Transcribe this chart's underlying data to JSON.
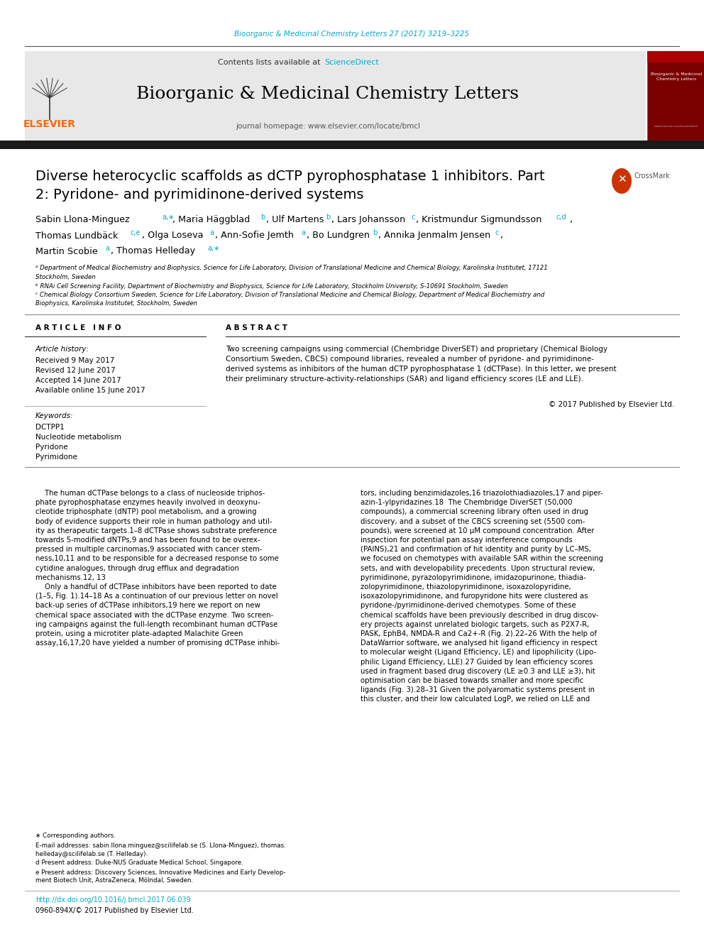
{
  "page_bg": "#ffffff",
  "top_journal_ref": "Bioorganic & Medicinal Chemistry Letters 27 (2017) 3219–3225",
  "top_journal_ref_color": "#00aacc",
  "header_bg": "#e8e8e8",
  "journal_title": "Bioorganic & Medicinal Chemistry Letters",
  "journal_homepage": "journal homepage: www.elsevier.com/locate/bmcl",
  "elsevier_orange": "#FF6600",
  "thick_bar_color": "#1a1a1a",
  "article_info_title": "A R T I C L E   I N F O",
  "abstract_title": "A B S T R A C T",
  "article_history_label": "Article history:",
  "received": "Received 9 May 2017",
  "revised": "Revised 12 June 2017",
  "accepted": "Accepted 14 June 2017",
  "available": "Available online 15 June 2017",
  "keywords_label": "Keywords:",
  "keywords": [
    "DCTPP1",
    "Nucleotide metabolism",
    "Pyridone",
    "Pyrimidone"
  ],
  "abstract_lines": [
    "Two screening campaigns using commercial (Chembridge DiverSET) and proprietary (Chemical Biology",
    "Consortium Sweden, CBCS) compound libraries, revealed a number of pyridone- and pyrimidinone-",
    "derived systems as inhibitors of the human dCTP pyrophosphatase 1 (dCTPase). In this letter, we present",
    "their preliminary structure-activity-relationships (SAR) and ligand efficiency scores (LE and LLE)."
  ],
  "copyright": "© 2017 Published by Elsevier Ltd.",
  "col1_lines": [
    "    The human dCTPase belongs to a class of nucleoside triphos-",
    "phate pyrophosphatase enzymes heavily involved in deoxynu-",
    "cleotide triphosphate (dNTP) pool metabolism, and a growing",
    "body of evidence supports their role in human pathology and util-",
    "ity as therapeutic targets.1–8 dCTPase shows substrate preference",
    "towards 5-modified dNTPs,9 and has been found to be overex-",
    "pressed in multiple carcinomas,9 associated with cancer stem-",
    "ness,10,11 and to be responsible for a decreased response to some",
    "cytidine analogues, through drug efflux and degradation",
    "mechanisms.12, 13",
    "    Only a handful of dCTPase inhibitors have been reported to date",
    "(1–5, Fig. 1).14–18 As a continuation of our previous letter on novel",
    "back-up series of dCTPase inhibitors,19 here we report on new",
    "chemical space associated with the dCTPase enzyme. Two screen-",
    "ing campaigns against the full-length recombinant human dCTPase",
    "protein, using a microtiter plate-adapted Malachite Green",
    "assay,16,17,20 have yielded a number of promising dCTPase inhibi-"
  ],
  "col2_lines": [
    "tors, including benzimidazoles,16 triazolothiadiazoles,17 and piper-",
    "azin-1-ylpyridazines.18  The Chembridge DiverSET (50,000",
    "compounds), a commercial screening library often used in drug",
    "discovery, and a subset of the CBCS screening set (5500 com-",
    "pounds), were screened at 10 μM compound concentration. After",
    "inspection for potential pan assay interference compounds",
    "(PAINS),21 and confirmation of hit identity and purity by LC–MS,",
    "we focused on chemotypes with available SAR within the screening",
    "sets, and with developability precedents. Upon structural review,",
    "pyrimidinone, pyrazolopyrimidinone, imidazopurinone, thiadia-",
    "zolopyrimidinone, thiazolopyrimidinone, isoxazolopyridine,",
    "isoxazolopyrimidinone, and furopyridone hits were clustered as",
    "pyridone-/pyrimidinone-derived chemotypes. Some of these",
    "chemical scaffolds have been previously described in drug discov-",
    "ery projects against unrelated biologic targets, such as P2X7-R,",
    "PASK, EphB4, NMDA-R and Ca2+-R (Fig. 2).22–26 With the help of",
    "DataWarrior software, we analysed hit ligand efficiency in respect",
    "to molecular weight (Ligand Efficiency, LE) and lipophilicity (Lipo-",
    "philic Ligand Efficiency, LLE).27 Guided by lean efficiency scores",
    "used in fragment based drug discovery (LE ≥0.3 and LLE ≥3), hit",
    "optimisation can be biased towards smaller and more specific",
    "ligands (Fig. 3).28–31 Given the polyaromatic systems present in",
    "this cluster, and their low calculated LogP, we relied on LLE and"
  ],
  "footnote_star": "∗ Corresponding authors.",
  "footnote_email1": "E-mail addresses: sabin.llona.minguez@scilifelab.se (S. Llona-Minguez), thomas.",
  "footnote_email2": "helleday@scilifelab.se (T. Helleday).",
  "footnote_d": "d Present address: Duke-NUS Graduate Medical School, Singapore.",
  "footnote_e1": "e Present address: Discovery Sciences, Innovative Medicines and Early Develop-",
  "footnote_e2": "ment Biotech Unit, AstraZeneca, Mölndal, Sweden.",
  "doi_line": "http://dx.doi.org/10.1016/j.bmcl.2017.06.039",
  "issn_line": "0960-894X/© 2017 Published by Elsevier Ltd."
}
